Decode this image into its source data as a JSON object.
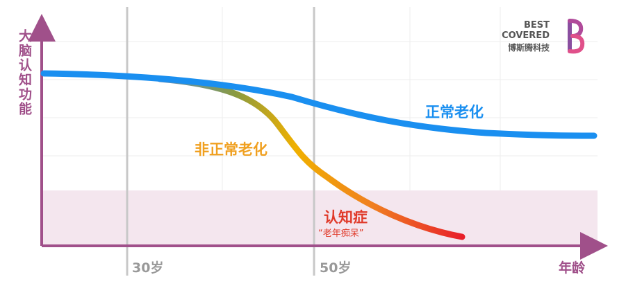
{
  "y_axis_label": "大脑认知功能",
  "x_axis_label": "年龄",
  "x_ticks": [
    "30岁",
    "50岁"
  ],
  "curves": {
    "normal": "正常老化",
    "abnormal": "非正常老化",
    "dementia": "认知症",
    "dementia_note": "“老年痴呆”"
  },
  "logo": {
    "line1": "BEST",
    "line2": "COVERED",
    "line3": "博斯腾科技"
  }
}
